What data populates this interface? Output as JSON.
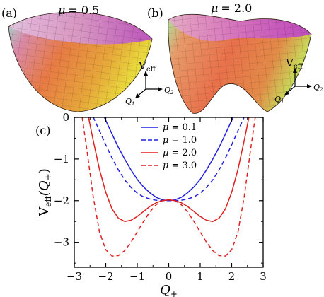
{
  "panels": {
    "a": {
      "label": "(a)",
      "mu_symbol": "μ",
      "mu_value": "= 0.5"
    },
    "b": {
      "label": "(b)",
      "mu_symbol": "μ",
      "mu_value": "= 2.0"
    },
    "c": {
      "label": "(c)"
    }
  },
  "axes3d": {
    "veff_main": "V",
    "veff_sub": "eff",
    "q_main": "Q",
    "q1_sub": "1",
    "q2_sub": "2"
  },
  "chart_data": {
    "type": "line",
    "xlabel": "Q",
    "xlabel_sub": "+",
    "ylabel_main": "V",
    "ylabel_sub": "eff",
    "ylabel_arg_open": "(Q",
    "ylabel_arg_sub": "+",
    "ylabel_arg_close": ")",
    "xlim": [
      -3,
      3
    ],
    "ylim": [
      -3.6,
      0
    ],
    "xticks": [
      -3,
      -2,
      -1,
      0,
      1,
      2,
      3
    ],
    "xtick_labels": [
      "−3",
      "−2",
      "−1",
      "0",
      "1",
      "2",
      "3"
    ],
    "yticks": [
      0,
      -1,
      -2,
      -3
    ],
    "ytick_labels": [
      "0",
      "−1",
      "−2",
      "−3"
    ],
    "legend_position": "top-center",
    "series": [
      {
        "name": "μ = 0.1",
        "name_sym": "μ",
        "name_val": "= 0.1",
        "color": "#1f1fe0",
        "dash": "solid",
        "x": [
          -2.05,
          -1.8,
          -1.6,
          -1.4,
          -1.2,
          -1.0,
          -0.8,
          -0.6,
          -0.4,
          -0.2,
          0,
          0.2,
          0.4,
          0.6,
          0.8,
          1.0,
          1.2,
          1.4,
          1.6,
          1.8,
          2.05
        ],
        "y": [
          0.01,
          -0.4,
          -0.72,
          -1.0,
          -1.26,
          -1.49,
          -1.67,
          -1.81,
          -1.92,
          -1.98,
          -2.0,
          -1.98,
          -1.92,
          -1.81,
          -1.67,
          -1.49,
          -1.26,
          -1.0,
          -0.72,
          -0.4,
          0.01
        ]
      },
      {
        "name": "μ = 1.0",
        "name_sym": "μ",
        "name_val": "= 1.0",
        "color": "#1f1fe0",
        "dash": "dashed",
        "x": [
          -2.4,
          -2.2,
          -2.0,
          -1.8,
          -1.6,
          -1.4,
          -1.2,
          -1.0,
          -0.8,
          -0.6,
          -0.4,
          -0.2,
          0,
          0.2,
          0.4,
          0.6,
          0.8,
          1.0,
          1.2,
          1.4,
          1.6,
          1.8,
          2.0,
          2.2,
          2.4
        ],
        "y": [
          0.01,
          -0.32,
          -0.66,
          -0.98,
          -1.26,
          -1.5,
          -1.68,
          -1.82,
          -1.91,
          -1.96,
          -1.99,
          -2.0,
          -2.0,
          -2.0,
          -1.99,
          -1.96,
          -1.91,
          -1.82,
          -1.68,
          -1.5,
          -1.26,
          -0.98,
          -0.66,
          -0.32,
          0.01
        ]
      },
      {
        "name": "μ = 2.0",
        "name_sym": "μ",
        "name_val": "= 2.0",
        "color": "#e01f1f",
        "dash": "solid",
        "x": [
          -2.55,
          -2.4,
          -2.2,
          -2.0,
          -1.8,
          -1.6,
          -1.4,
          -1.2,
          -1.0,
          -0.8,
          -0.6,
          -0.4,
          -0.2,
          0,
          0.2,
          0.4,
          0.6,
          0.8,
          1.0,
          1.2,
          1.4,
          1.6,
          1.8,
          2.0,
          2.2,
          2.4,
          2.55
        ],
        "y": [
          0.01,
          -0.55,
          -1.25,
          -1.8,
          -2.2,
          -2.42,
          -2.5,
          -2.47,
          -2.38,
          -2.26,
          -2.14,
          -2.05,
          -2.0,
          -1.98,
          -2.0,
          -2.05,
          -2.14,
          -2.26,
          -2.38,
          -2.47,
          -2.5,
          -2.42,
          -2.2,
          -1.8,
          -1.25,
          -0.55,
          0.01
        ]
      },
      {
        "name": "μ = 3.0",
        "name_sym": "μ",
        "name_val": "= 3.0",
        "color": "#e01f1f",
        "dash": "dashed",
        "x": [
          -2.75,
          -2.6,
          -2.4,
          -2.2,
          -2.0,
          -1.8,
          -1.6,
          -1.4,
          -1.2,
          -1.0,
          -0.8,
          -0.6,
          -0.4,
          -0.2,
          0,
          0.2,
          0.4,
          0.6,
          0.8,
          1.0,
          1.2,
          1.4,
          1.6,
          1.8,
          2.0,
          2.2,
          2.4,
          2.6,
          2.75
        ],
        "y": [
          0.01,
          -0.78,
          -1.9,
          -2.75,
          -3.18,
          -3.33,
          -3.32,
          -3.2,
          -3.0,
          -2.75,
          -2.5,
          -2.27,
          -2.1,
          -2.0,
          -1.97,
          -2.0,
          -2.1,
          -2.27,
          -2.5,
          -2.75,
          -3.0,
          -3.2,
          -3.32,
          -3.33,
          -3.18,
          -2.75,
          -1.9,
          -0.78,
          0.01
        ]
      }
    ]
  }
}
